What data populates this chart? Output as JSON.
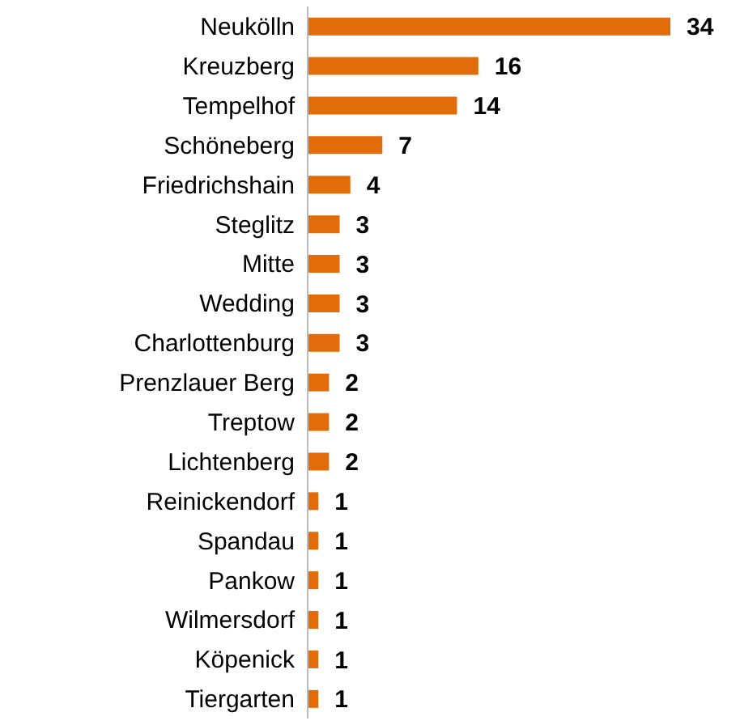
{
  "chart_data": {
    "type": "bar",
    "orientation": "horizontal",
    "data_labels": true,
    "categories": [
      "Neukölln",
      "Kreuzberg",
      "Tempelhof",
      "Schöneberg",
      "Friedrichshain",
      "Steglitz",
      "Mitte",
      "Wedding",
      "Charlottenburg",
      "Prenzlauer Berg",
      "Treptow",
      "Lichtenberg",
      "Reinickendorf",
      "Spandau",
      "Pankow",
      "Wilmersdorf",
      "Köpenick",
      "Tiergarten"
    ],
    "values": [
      34,
      16,
      14,
      7,
      4,
      3,
      3,
      3,
      3,
      2,
      2,
      2,
      1,
      1,
      1,
      1,
      1,
      1
    ],
    "color": "#e36c0a"
  }
}
